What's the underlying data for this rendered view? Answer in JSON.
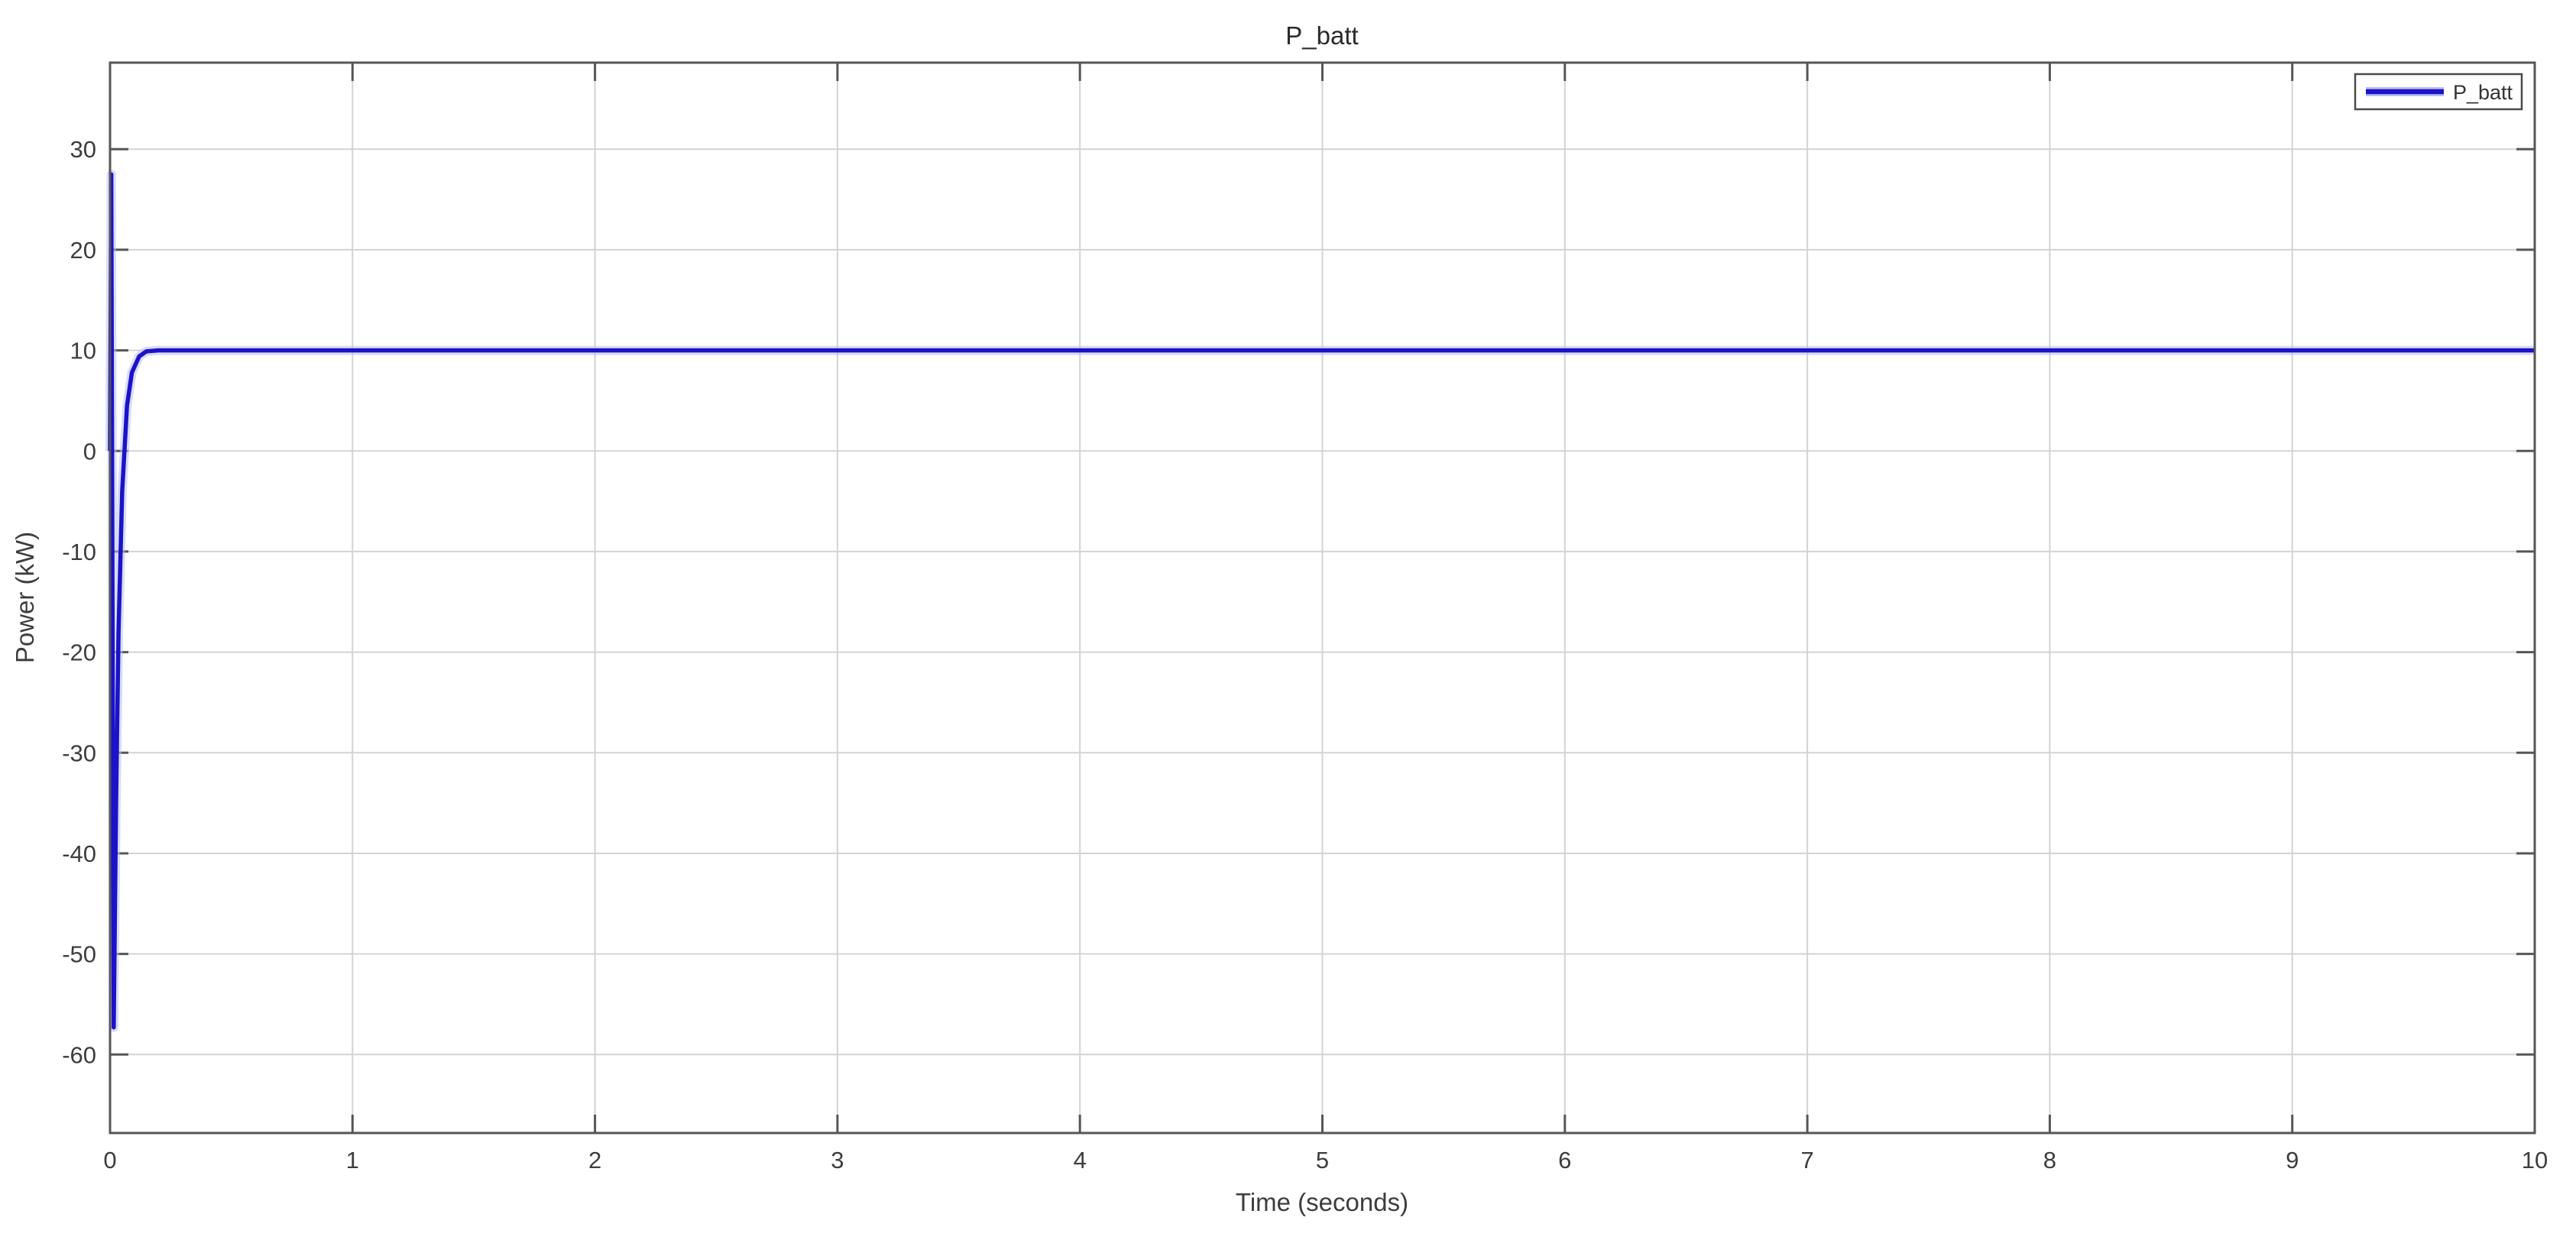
{
  "figure": {
    "title": "P_batt",
    "xlabel": "Time (seconds)",
    "ylabel": "Power (kW)",
    "legend": {
      "position": "top-right",
      "entries": [
        {
          "label": "P_batt",
          "color": "#1c12c8"
        }
      ]
    }
  },
  "chart_data": {
    "type": "line",
    "title": "P_batt",
    "xlabel": "Time (seconds)",
    "ylabel": "Power (kW)",
    "xlim": [
      0,
      10
    ],
    "ylim": [
      -67.8,
      38.6
    ],
    "xticks": [
      0,
      1,
      2,
      3,
      4,
      5,
      6,
      7,
      8,
      9,
      10
    ],
    "yticks": [
      -60,
      -50,
      -40,
      -30,
      -20,
      -10,
      0,
      10,
      20,
      30
    ],
    "grid": true,
    "legend_position": "top-right",
    "series": [
      {
        "name": "P_batt",
        "color": "#1c12c8",
        "halo_color": "#b7bfee",
        "initial_value": 0,
        "peak": 27.5,
        "trough": -57.3,
        "steady_state": 10,
        "settle_time": 0.2,
        "points": [
          [
            0,
            0
          ],
          [
            0.005,
            27.5
          ],
          [
            0.015,
            -57.3
          ],
          [
            0.025,
            -35
          ],
          [
            0.035,
            -18
          ],
          [
            0.05,
            -4
          ],
          [
            0.07,
            4.5
          ],
          [
            0.09,
            7.8
          ],
          [
            0.12,
            9.4
          ],
          [
            0.15,
            9.9
          ],
          [
            0.2,
            10
          ],
          [
            10,
            10
          ]
        ]
      }
    ]
  },
  "colors": {
    "background": "#ffffff",
    "plot_background": "#ffffff",
    "grid": "#d3d3d3",
    "axis_border": "#565656",
    "tick": "#565656",
    "tick_text": "#3d3d3d",
    "title_text": "#2a2a2a",
    "legend_border": "#4a4a4a",
    "line": "#1c12c8",
    "line_halo": "#b7bfee"
  }
}
